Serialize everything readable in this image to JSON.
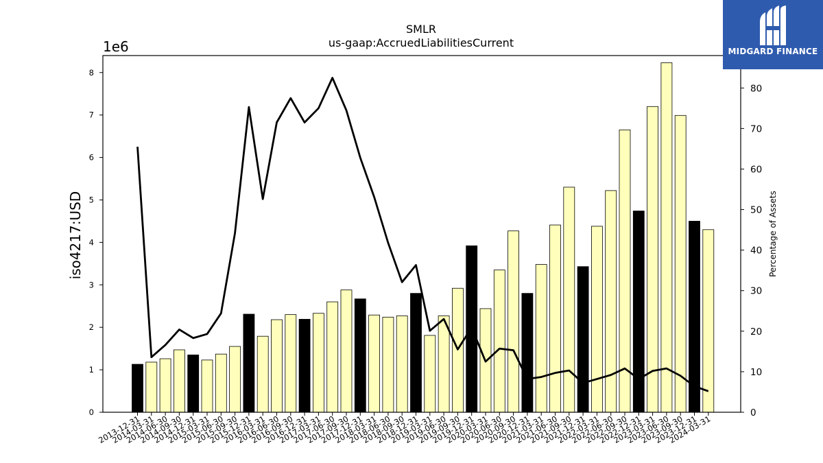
{
  "chart_data": {
    "type": "bar",
    "title": "SMLR",
    "subtitle": "us-gaap:AccruedLiabilitiesCurrent",
    "ylabel": "iso4217:USD",
    "y_offset_label": "1e6",
    "y2label": "Percentage of Assets",
    "ylim": [
      0,
      8400000
    ],
    "y2lim": [
      0,
      88
    ],
    "yticks": [
      0,
      1000000,
      2000000,
      3000000,
      4000000,
      5000000,
      6000000,
      7000000,
      8000000
    ],
    "ytick_labels": [
      "0",
      "1",
      "2",
      "3",
      "4",
      "5",
      "6",
      "7",
      "8"
    ],
    "y2ticks": [
      0,
      10,
      20,
      30,
      40,
      50,
      60,
      70,
      80
    ],
    "y2tick_labels": [
      "0",
      "10",
      "20",
      "30",
      "40",
      "50",
      "60",
      "70",
      "80"
    ],
    "categories": [
      "2013-12-31",
      "2014-03-31",
      "2014-06-30",
      "2014-09-30",
      "2014-12-31",
      "2015-03-31",
      "2015-06-30",
      "2015-09-30",
      "2015-12-31",
      "2016-03-31",
      "2016-06-30",
      "2016-09-30",
      "2016-12-31",
      "2017-03-31",
      "2017-06-30",
      "2017-09-30",
      "2017-12-31",
      "2018-03-31",
      "2018-06-30",
      "2018-09-30",
      "2018-12-31",
      "2019-03-31",
      "2019-06-30",
      "2019-09-30",
      "2019-12-31",
      "2020-03-31",
      "2020-06-30",
      "2020-09-30",
      "2020-12-31",
      "2021-03-31",
      "2021-06-30",
      "2021-09-30",
      "2021-12-31",
      "2022-03-31",
      "2022-06-30",
      "2022-09-30",
      "2022-12-31",
      "2023-03-31",
      "2023-06-30",
      "2023-09-30",
      "2023-12-31",
      "2024-03-31"
    ],
    "series": [
      {
        "kind": "bar",
        "axis": "left",
        "values": [
          1130000,
          1180000,
          1260000,
          1470000,
          1350000,
          1230000,
          1370000,
          1550000,
          2310000,
          1790000,
          2180000,
          2300000,
          2190000,
          2330000,
          2600000,
          2880000,
          2670000,
          2290000,
          2240000,
          2270000,
          2800000,
          1810000,
          2270000,
          2920000,
          3920000,
          2440000,
          3350000,
          4270000,
          2800000,
          3480000,
          4410000,
          5300000,
          3430000,
          4380000,
          5220000,
          6650000,
          4740000,
          7200000,
          8230000,
          6990000,
          4500000,
          4300000
        ],
        "colors": [
          "#000000",
          "#ffffbb",
          "#ffffbb",
          "#ffffbb",
          "#000000",
          "#ffffbb",
          "#ffffbb",
          "#ffffbb",
          "#000000",
          "#ffffbb",
          "#ffffbb",
          "#ffffbb",
          "#000000",
          "#ffffbb",
          "#ffffbb",
          "#ffffbb",
          "#000000",
          "#ffffbb",
          "#ffffbb",
          "#ffffbb",
          "#000000",
          "#ffffbb",
          "#ffffbb",
          "#ffffbb",
          "#000000",
          "#ffffbb",
          "#ffffbb",
          "#ffffbb",
          "#000000",
          "#ffffbb",
          "#ffffbb",
          "#ffffbb",
          "#000000",
          "#ffffbb",
          "#ffffbb",
          "#ffffbb",
          "#000000",
          "#ffffbb",
          "#ffffbb",
          "#ffffbb",
          "#000000",
          "#ffffbb"
        ]
      },
      {
        "kind": "line",
        "axis": "right",
        "values": [
          65.5,
          13.6,
          16.6,
          20.4,
          18.3,
          19.3,
          24.4,
          44.2,
          75.3,
          52.6,
          71.5,
          77.5,
          71.5,
          75.0,
          82.5,
          74.5,
          62.8,
          53.1,
          41.8,
          32.1,
          36.3,
          20.1,
          23.0,
          15.5,
          20.9,
          12.5,
          15.7,
          15.3,
          8.2,
          8.7,
          9.7,
          10.3,
          7.2,
          8.2,
          9.2,
          10.8,
          8.2,
          10.2,
          10.8,
          9.0,
          6.4,
          5.2
        ],
        "color": "#000000"
      }
    ],
    "grid": false,
    "legend": "none"
  },
  "logo": {
    "text": "MIDGARD FINANCE",
    "bg_color": "#2f5bae",
    "icon": "midgard-logo-icon"
  }
}
